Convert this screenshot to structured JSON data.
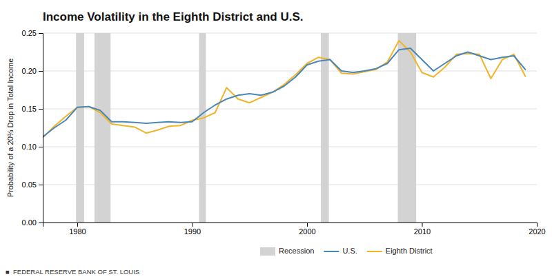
{
  "chart_data": {
    "type": "line",
    "title": "Income Volatility in the Eighth District and U.S.",
    "y_label": "Probability of a 20% Drop in Total Income",
    "annotations": [
      "■  FEDERAL RESERVE BANK OF ST. LOUIS"
    ],
    "x": [
      1977,
      1978,
      1979,
      1980,
      1981,
      1982,
      1983,
      1984,
      1985,
      1986,
      1987,
      1988,
      1989,
      1990,
      1991,
      1992,
      1993,
      1994,
      1995,
      1996,
      1997,
      1998,
      1999,
      2000,
      2001,
      2002,
      2003,
      2004,
      2005,
      2006,
      2007,
      2008,
      2009,
      2010,
      2011,
      2012,
      2013,
      2014,
      2015,
      2016,
      2017,
      2018,
      2019
    ],
    "series": [
      {
        "name": "U.S.",
        "color": "#4a86b8",
        "values": [
          0.113,
          0.125,
          0.135,
          0.152,
          0.153,
          0.148,
          0.133,
          0.133,
          0.132,
          0.131,
          0.132,
          0.133,
          0.132,
          0.133,
          0.145,
          0.155,
          0.163,
          0.168,
          0.17,
          0.168,
          0.172,
          0.18,
          0.192,
          0.208,
          0.213,
          0.215,
          0.2,
          0.198,
          0.2,
          0.203,
          0.21,
          0.228,
          0.23,
          0.215,
          0.2,
          0.21,
          0.22,
          0.225,
          0.22,
          0.215,
          0.218,
          0.22,
          0.202
        ]
      },
      {
        "name": "Eighth District",
        "color": "#f0b429",
        "values": [
          0.112,
          0.127,
          0.14,
          0.152,
          0.153,
          0.145,
          0.13,
          0.128,
          0.126,
          0.118,
          0.122,
          0.127,
          0.128,
          0.135,
          0.138,
          0.145,
          0.178,
          0.163,
          0.158,
          0.165,
          0.172,
          0.182,
          0.195,
          0.21,
          0.218,
          0.215,
          0.197,
          0.196,
          0.199,
          0.202,
          0.212,
          0.24,
          0.225,
          0.198,
          0.192,
          0.205,
          0.222,
          0.223,
          0.222,
          0.19,
          0.215,
          0.222,
          0.193
        ]
      }
    ],
    "shaded_regions": {
      "name": "Recession",
      "color": "#d3d3d3",
      "ranges": [
        [
          1979.9,
          1980.6
        ],
        [
          1981.5,
          1982.9
        ],
        [
          1990.6,
          1991.2
        ],
        [
          2001.2,
          2001.9
        ],
        [
          2007.9,
          2009.5
        ]
      ]
    },
    "xlim": [
      1977,
      2020
    ],
    "xticks": [
      1980,
      1990,
      2000,
      2010,
      2020
    ],
    "ylim": [
      0.0,
      0.25
    ],
    "yticks": [
      {
        "value": 0.0,
        "label": "0.00"
      },
      0.05,
      {
        "value": 0.1,
        "label": "0.10"
      },
      0.15,
      {
        "value": 0.2,
        "label": "0.20"
      },
      0.25
    ],
    "grid": true,
    "legend": "bottom"
  }
}
